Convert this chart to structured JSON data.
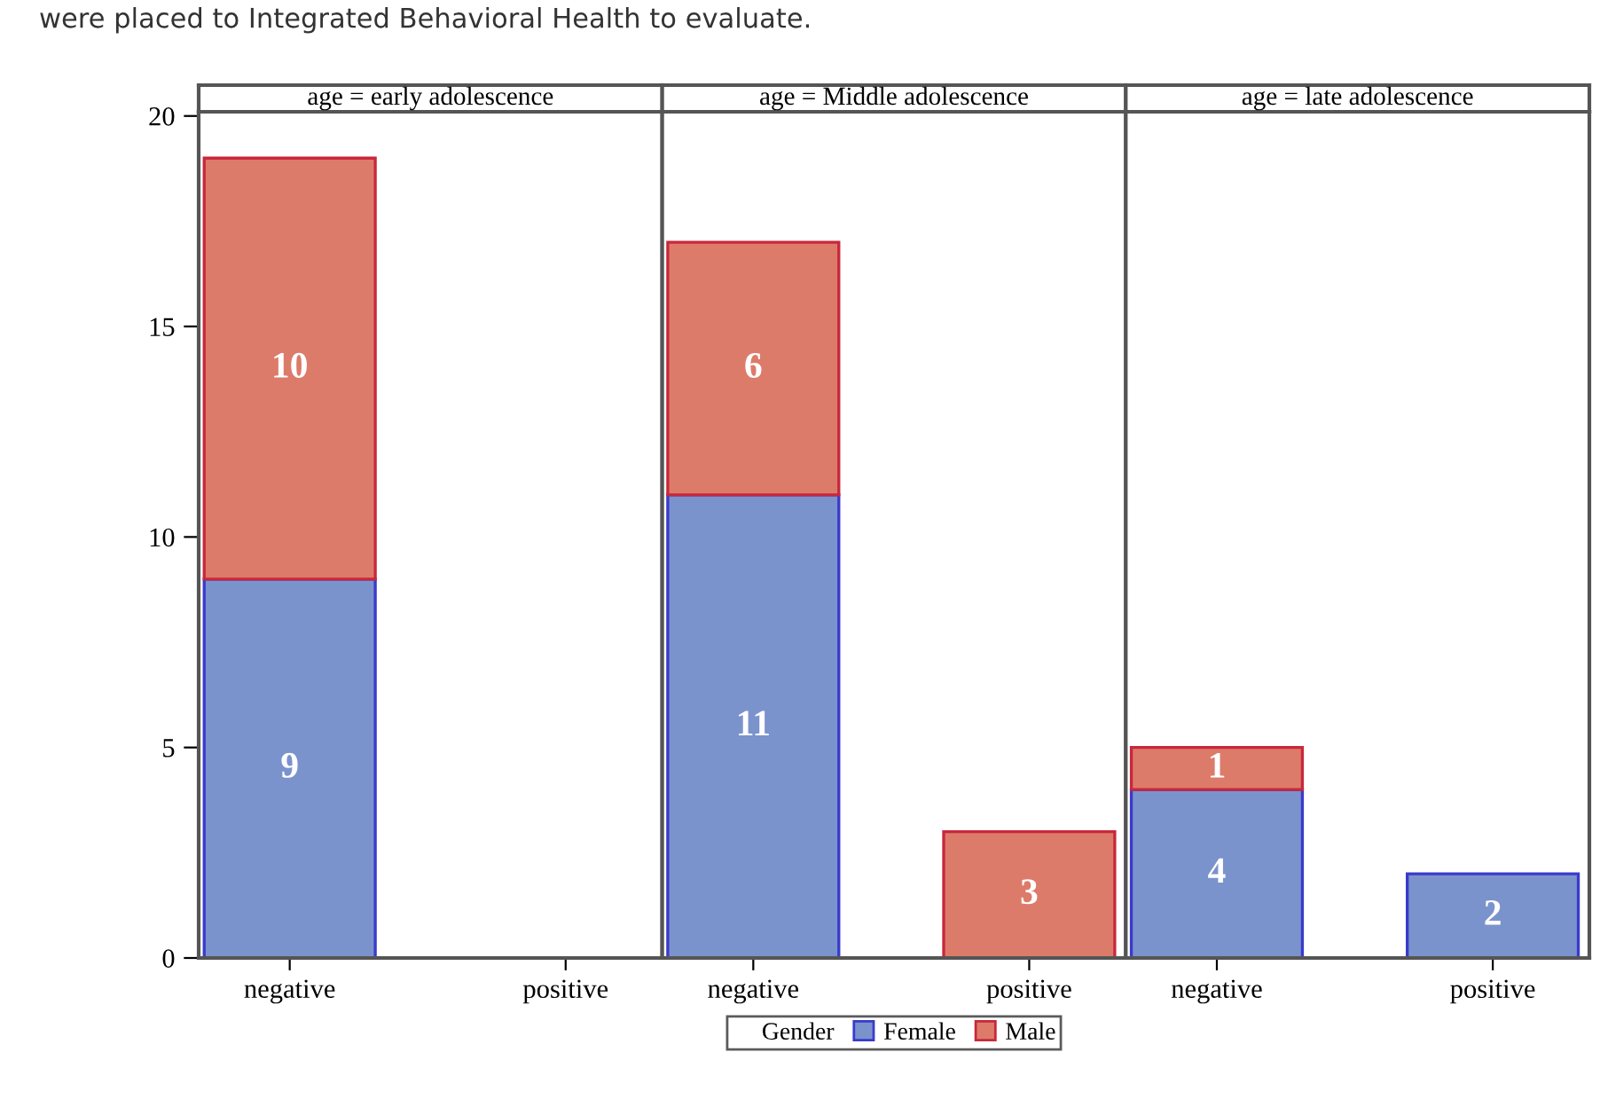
{
  "chart_data": [
    {
      "type": "bar",
      "title": "age = early adolescence",
      "categories": [
        "negative",
        "positive"
      ],
      "stacked": true,
      "ylim": [
        0,
        20.1
      ],
      "yticks": [
        0,
        5,
        10,
        15,
        20
      ],
      "grid": false,
      "data_labels": true,
      "legend": "bottom",
      "legend_title": "Gender",
      "annotations": [
        "were placed to Integrated Behavioral Health to evaluate."
      ],
      "series": [
        {
          "name": "Female",
          "color": "#7b93cc",
          "values": [
            9,
            null
          ]
        },
        {
          "name": "Male",
          "color": "#dd7b6a",
          "values": [
            10,
            null
          ]
        }
      ]
    },
    {
      "type": "bar",
      "title": "age = Middle adolescence",
      "categories": [
        "negative",
        "positive"
      ],
      "stacked": true,
      "ylim": [
        0,
        20.1
      ],
      "tick_labels": "x",
      "grid": false,
      "data_labels": true,
      "series": [
        {
          "color": "#7b93cc",
          "values": [
            11,
            null
          ]
        },
        {
          "color": "#dd7b6a",
          "values": [
            6,
            3
          ]
        }
      ]
    },
    {
      "type": "bar",
      "title": "age = late adolescence",
      "categories": [
        "negative",
        "positive"
      ],
      "stacked": true,
      "ylim": [
        0,
        20.1
      ],
      "tick_labels": "x",
      "grid": false,
      "data_labels": true,
      "series": [
        {
          "color": "#7b93cc",
          "values": [
            4,
            2
          ]
        },
        {
          "color": "#dd7b6a",
          "values": [
            1,
            null
          ]
        }
      ]
    }
  ]
}
